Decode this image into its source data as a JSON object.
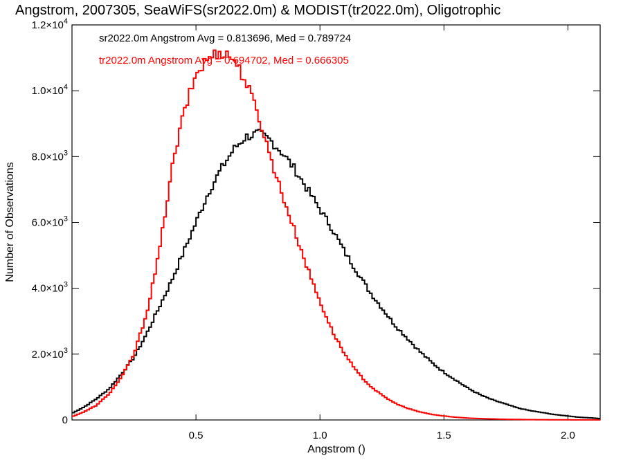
{
  "chart_data": {
    "type": "histogram",
    "title": "Angstrom, 2007305, SeaWiFS(sr2022.0m) & MODIST(tr2022.0m), Oligotrophic",
    "xlabel": "Angstrom ()",
    "ylabel": "Number of Observations",
    "xlim": [
      0.0,
      2.13
    ],
    "ylim": [
      0,
      12000
    ],
    "x_ticks": [
      {
        "value": 0.5,
        "label": "0.5"
      },
      {
        "value": 1.0,
        "label": "1.0"
      },
      {
        "value": 1.5,
        "label": "1.5"
      },
      {
        "value": 2.0,
        "label": "2.0"
      }
    ],
    "y_ticks": [
      {
        "value": 0,
        "mant": "0",
        "exp": ""
      },
      {
        "value": 2000,
        "mant": "2.0×10",
        "exp": "3"
      },
      {
        "value": 4000,
        "mant": "4.0×10",
        "exp": "3"
      },
      {
        "value": 6000,
        "mant": "6.0×10",
        "exp": "3"
      },
      {
        "value": 8000,
        "mant": "8.0×10",
        "exp": "3"
      },
      {
        "value": 10000,
        "mant": "1.0×10",
        "exp": "4"
      },
      {
        "value": 12000,
        "mant": "1.2×10",
        "exp": "4"
      }
    ],
    "legend_position": "top-left",
    "series": [
      {
        "name": "sr2022.0m",
        "color": "#000000",
        "annotation": "sr2022.0m Angstrom Avg = 0.813696, Med = 0.789724",
        "x": [
          0.0,
          0.05,
          0.1,
          0.15,
          0.2,
          0.25,
          0.3,
          0.35,
          0.4,
          0.45,
          0.5,
          0.55,
          0.6,
          0.65,
          0.7,
          0.75,
          0.8,
          0.85,
          0.9,
          0.95,
          1.0,
          1.05,
          1.1,
          1.15,
          1.2,
          1.25,
          1.3,
          1.35,
          1.4,
          1.45,
          1.5,
          1.55,
          1.6,
          1.65,
          1.7,
          1.75,
          1.8,
          1.85,
          1.9,
          1.95,
          2.0,
          2.05,
          2.1,
          2.13
        ],
        "y": [
          200,
          400,
          650,
          950,
          1400,
          1900,
          2600,
          3400,
          4200,
          5100,
          6000,
          6900,
          7600,
          8200,
          8600,
          8700,
          8500,
          8100,
          7600,
          7000,
          6400,
          5800,
          5100,
          4500,
          3900,
          3400,
          2900,
          2500,
          2100,
          1750,
          1450,
          1200,
          950,
          750,
          600,
          480,
          360,
          280,
          220,
          160,
          120,
          80,
          60,
          40
        ]
      },
      {
        "name": "tr2022.0m",
        "color": "#ff0000",
        "annotation": "tr2022.0m Angstrom Avg = 0.694702, Med = 0.666305",
        "x": [
          0.0,
          0.05,
          0.1,
          0.15,
          0.2,
          0.25,
          0.3,
          0.35,
          0.4,
          0.45,
          0.5,
          0.55,
          0.6,
          0.65,
          0.7,
          0.75,
          0.8,
          0.85,
          0.9,
          0.95,
          1.0,
          1.05,
          1.1,
          1.15,
          1.2,
          1.25,
          1.3,
          1.35,
          1.4,
          1.45,
          1.5,
          1.55,
          1.6,
          1.65,
          1.7,
          1.75,
          1.8,
          1.85,
          1.9,
          1.95,
          2.0,
          2.05,
          2.1,
          2.13
        ],
        "y": [
          100,
          250,
          450,
          800,
          1300,
          2000,
          3200,
          5000,
          7500,
          9300,
          10500,
          11000,
          11200,
          11000,
          10300,
          9300,
          8000,
          6800,
          5700,
          4600,
          3600,
          2700,
          2000,
          1450,
          1050,
          750,
          520,
          360,
          250,
          170,
          120,
          80,
          55,
          40,
          30,
          20,
          15,
          10,
          8,
          5,
          4,
          3,
          2,
          2
        ]
      }
    ]
  }
}
